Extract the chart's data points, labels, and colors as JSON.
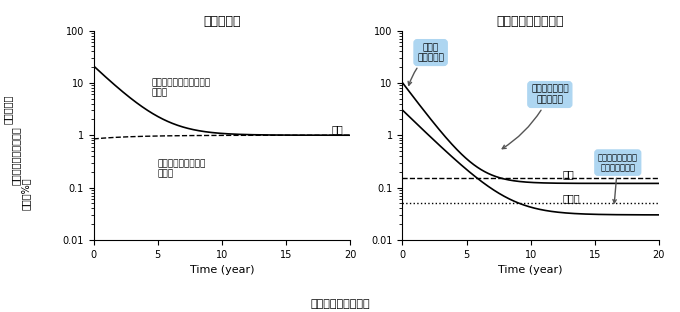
{
  "title_left": "スギ一斉林",
  "title_right": "コナラ・マツ混交林",
  "xlabel": "Time (year)",
  "bottom_label": "事故後の年数（年）",
  "ylabel_line1": "事故直後の",
  "ylabel_line2": "総セシウム量に対する",
  "ylabel_line3": "比率（%）",
  "ylim": [
    0.01,
    100
  ],
  "xlim": [
    0,
    20
  ],
  "xticks": [
    0,
    5,
    10,
    15,
    20
  ],
  "yticks": [
    0.01,
    0.1,
    1,
    10,
    100
  ],
  "yticklabels": [
    "0.01",
    "0.1",
    "1",
    "10",
    "100"
  ],
  "left_annotation1": "樹木からの落葉等による\n排出量",
  "left_annotation2": "樹木による根からの\n吸収量",
  "left_label_sugi": "スギ",
  "right_label_matsu": "マツ",
  "right_label_konara": "コナラ",
  "right_bubble1_text": "初期は\n大きく排出",
  "right_bubble2_text": "森林内の循環が\n平衡状態に",
  "right_bubble3_text": "コナラは吸収量が\n排出量を上回る",
  "bubble_color": "#aed6f1",
  "bg_color": "#ffffff",
  "line_color": "#000000"
}
